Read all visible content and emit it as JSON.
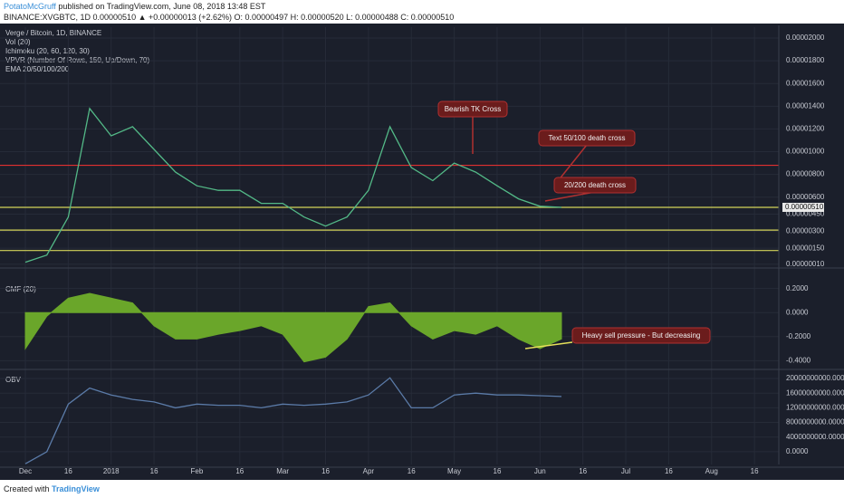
{
  "header": {
    "publisher": "PotatoMcGruff",
    "published": "published on TradingView.com, June 08, 2018 13:48 EST",
    "symbol_line": "BINANCE:XVGBTC, 1D  0.00000510 ▲ +0.00000013 (+2.62%) O: 0.00000497 H: 0.00000520 L: 0.00000488 C: 0.00000510",
    "studies": [
      "Verge / Bitcoin, 1D, BINANCE",
      "Vol (20)",
      "Ichimoku (20, 60, 120, 30)",
      "VPVR (Number Of Rows, 150, Up/Down, 70)",
      "EMA 20/50/100/200"
    ]
  },
  "chart_data": [
    {
      "type": "line",
      "color": "#53b987",
      "values": [
        2.7e-07,
        9e-07,
        4.25e-06,
        1.38e-05,
        1.14e-05,
        1.22e-05,
        1.02e-05,
        8.2e-06,
        7e-06,
        6.6e-06,
        6.6e-06,
        5.45e-06,
        5.45e-06,
        4.25e-06,
        3.45e-06,
        4.25e-06,
        6.6e-06,
        1.22e-05,
        8.6e-06,
        7.45e-06,
        9e-06,
        8.2e-06,
        7e-06,
        5.85e-06,
        5.2e-06,
        5.1e-06,
        null,
        null,
        null,
        null,
        null,
        null,
        null,
        null,
        null
      ],
      "ylim": [
        0,
        2.08e-05
      ],
      "yticks": [
        {
          "value": 2e-05,
          "label": "0.00002000"
        },
        {
          "value": 1.8e-05,
          "label": "0.00001800"
        },
        {
          "value": 1.6e-05,
          "label": "0.00001600"
        },
        {
          "value": 1.4e-05,
          "label": "0.00001400"
        },
        {
          "value": 1.2e-05,
          "label": "0.00001200"
        },
        {
          "value": 1e-05,
          "label": "0.00001000"
        },
        {
          "value": 8e-06,
          "label": "0.00000800"
        },
        {
          "value": 6e-06,
          "label": "0.00000600"
        },
        {
          "value": 4.5e-06,
          "label": "0.00000450"
        },
        {
          "value": 3e-06,
          "label": "0.00000300"
        },
        {
          "value": 1.5e-06,
          "label": "0.00000150"
        },
        {
          "value": 1e-07,
          "label": "0.00000010"
        }
      ],
      "last_value": {
        "value": 5.1e-06,
        "label": "0.00000510"
      },
      "hlines": [
        {
          "value": 8.8e-06,
          "color": "#e03030"
        },
        {
          "value": 5.1e-06,
          "color": "#d4d45a"
        },
        {
          "value": 3.1e-06,
          "color": "#d4d45a"
        },
        {
          "value": 1.3e-06,
          "color": "#d4d45a"
        }
      ],
      "annotations": [
        "Bearish TK Cross",
        "Text 50/100 death cross",
        "20/200 death cross"
      ],
      "grid": true
    },
    {
      "type": "area",
      "title": "CMF (20)",
      "color": "#6aa62a",
      "values": [
        -0.3,
        -0.03,
        0.12,
        0.16,
        0.12,
        0.08,
        -0.11,
        -0.22,
        -0.22,
        -0.18,
        -0.15,
        -0.11,
        -0.18,
        -0.41,
        -0.37,
        -0.22,
        0.05,
        0.08,
        -0.11,
        -0.22,
        -0.15,
        -0.18,
        -0.11,
        -0.22,
        -0.3,
        -0.22,
        null,
        null,
        null,
        null,
        null,
        null,
        null,
        null,
        null
      ],
      "ylim": [
        -0.45,
        0.25
      ],
      "yticks": [
        {
          "value": 0.2,
          "label": "0.2000"
        },
        {
          "value": 0,
          "label": "0.0000"
        },
        {
          "value": -0.2,
          "label": "-0.2000"
        },
        {
          "value": -0.4,
          "label": "-0.4000"
        }
      ],
      "annotations": [
        "Heavy sell pressure - But decreasing"
      ],
      "grid": true
    },
    {
      "type": "line",
      "title": "OBV",
      "color": "#5b7ba8",
      "categories": [
        "Dec",
        null,
        "16",
        null,
        "2018",
        null,
        "16",
        null,
        "Feb",
        null,
        "16",
        null,
        "Mar",
        null,
        "16",
        null,
        "Apr",
        null,
        "16",
        null,
        "May",
        null,
        "16",
        null,
        "Jun",
        null,
        "16",
        null,
        "Jul",
        null,
        "16",
        null,
        "Aug",
        null,
        "16"
      ],
      "values": [
        -3300000000,
        0,
        13000000000,
        17400000000,
        15500000000,
        14300000000,
        13600000000,
        12000000000,
        13000000000,
        12700000000,
        12700000000,
        12000000000,
        13000000000,
        12700000000,
        13000000000,
        13600000000,
        15500000000,
        20200000000,
        12000000000,
        12000000000,
        15500000000,
        16000000000,
        15500000000,
        15500000000,
        15300000000,
        15100000000,
        null,
        null,
        null,
        null,
        null,
        null,
        null,
        null,
        null
      ],
      "ylim": [
        -3500000000,
        21500000000
      ],
      "yticks": [
        {
          "value": 20000000000,
          "label": "20000000000.0000"
        },
        {
          "value": 16000000000,
          "label": "16000000000.0000"
        },
        {
          "value": 12000000000,
          "label": "12000000000.0000"
        },
        {
          "value": 8000000000,
          "label": "8000000000.0000"
        },
        {
          "value": 4000000000,
          "label": "4000000000.0000"
        },
        {
          "value": 0,
          "label": "0.0000"
        }
      ],
      "grid": true
    }
  ],
  "footer": {
    "created": "Created with",
    "brand": "TradingView"
  }
}
